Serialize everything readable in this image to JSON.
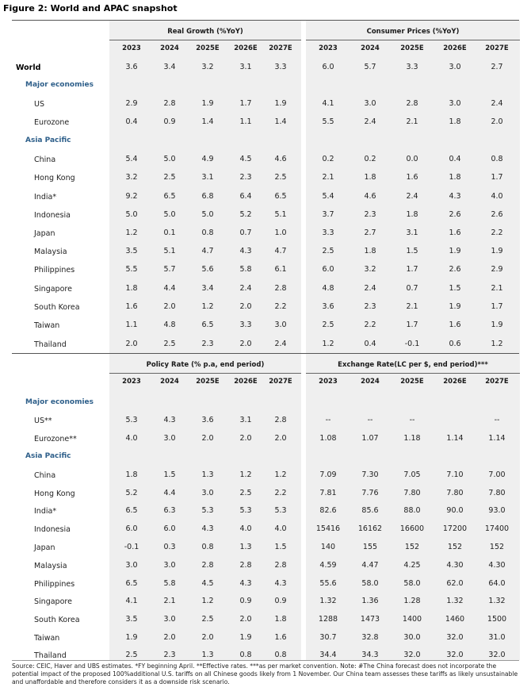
{
  "title": "Figure 2: World and APAC snapshot",
  "top": {
    "group_left": "Real Growth (%YoY)",
    "group_right": "Consumer Prices (%YoY)",
    "years": [
      "2023",
      "2024",
      "2025E",
      "2026E",
      "2027E"
    ],
    "rows": [
      {
        "type": "world",
        "label": "World",
        "a": [
          "3.6",
          "3.4",
          "3.2",
          "3.1",
          "3.3"
        ],
        "b": [
          "6.0",
          "5.7",
          "3.3",
          "3.0",
          "2.7"
        ]
      },
      {
        "type": "section",
        "label": "Major economies"
      },
      {
        "type": "row",
        "label": "US",
        "a": [
          "2.9",
          "2.8",
          "1.9",
          "1.7",
          "1.9"
        ],
        "b": [
          "4.1",
          "3.0",
          "2.8",
          "3.0",
          "2.4"
        ]
      },
      {
        "type": "row",
        "label": "Eurozone",
        "a": [
          "0.4",
          "0.9",
          "1.4",
          "1.1",
          "1.4"
        ],
        "b": [
          "5.5",
          "2.4",
          "2.1",
          "1.8",
          "2.0"
        ]
      },
      {
        "type": "section",
        "label": "Asia Pacific"
      },
      {
        "type": "row",
        "label": "China",
        "a": [
          "5.4",
          "5.0",
          "4.9",
          "4.5",
          "4.6"
        ],
        "b": [
          "0.2",
          "0.2",
          "0.0",
          "0.4",
          "0.8"
        ]
      },
      {
        "type": "row",
        "label": "Hong Kong",
        "a": [
          "3.2",
          "2.5",
          "3.1",
          "2.3",
          "2.5"
        ],
        "b": [
          "2.1",
          "1.8",
          "1.6",
          "1.8",
          "1.7"
        ]
      },
      {
        "type": "row",
        "label": "India*",
        "a": [
          "9.2",
          "6.5",
          "6.8",
          "6.4",
          "6.5"
        ],
        "b": [
          "5.4",
          "4.6",
          "2.4",
          "4.3",
          "4.0"
        ]
      },
      {
        "type": "row",
        "label": "Indonesia",
        "a": [
          "5.0",
          "5.0",
          "5.0",
          "5.2",
          "5.1"
        ],
        "b": [
          "3.7",
          "2.3",
          "1.8",
          "2.6",
          "2.6"
        ]
      },
      {
        "type": "row",
        "label": "Japan",
        "a": [
          "1.2",
          "0.1",
          "0.8",
          "0.7",
          "1.0"
        ],
        "b": [
          "3.3",
          "2.7",
          "3.1",
          "1.6",
          "2.2"
        ]
      },
      {
        "type": "row",
        "label": "Malaysia",
        "a": [
          "3.5",
          "5.1",
          "4.7",
          "4.3",
          "4.7"
        ],
        "b": [
          "2.5",
          "1.8",
          "1.5",
          "1.9",
          "1.9"
        ]
      },
      {
        "type": "row",
        "label": "Philippines",
        "a": [
          "5.5",
          "5.7",
          "5.6",
          "5.8",
          "6.1"
        ],
        "b": [
          "6.0",
          "3.2",
          "1.7",
          "2.6",
          "2.9"
        ]
      },
      {
        "type": "row",
        "label": "Singapore",
        "a": [
          "1.8",
          "4.4",
          "3.4",
          "2.4",
          "2.8"
        ],
        "b": [
          "4.8",
          "2.4",
          "0.7",
          "1.5",
          "2.1"
        ]
      },
      {
        "type": "row",
        "label": "South Korea",
        "a": [
          "1.6",
          "2.0",
          "1.2",
          "2.0",
          "2.2"
        ],
        "b": [
          "3.6",
          "2.3",
          "2.1",
          "1.9",
          "1.7"
        ]
      },
      {
        "type": "row",
        "label": "Taiwan",
        "a": [
          "1.1",
          "4.8",
          "6.5",
          "3.3",
          "3.0"
        ],
        "b": [
          "2.5",
          "2.2",
          "1.7",
          "1.6",
          "1.9"
        ]
      },
      {
        "type": "row",
        "label": "Thailand",
        "a": [
          "2.0",
          "2.5",
          "2.3",
          "2.0",
          "2.4"
        ],
        "b": [
          "1.2",
          "0.4",
          "-0.1",
          "0.6",
          "1.2"
        ]
      }
    ]
  },
  "bottom": {
    "group_left": "Policy Rate (% p.a, end period)",
    "group_right": "Exchange Rate(LC per $, end period)***",
    "years": [
      "2023",
      "2024",
      "2025E",
      "2026E",
      "2027E"
    ],
    "rows": [
      {
        "type": "section",
        "label": "Major economies"
      },
      {
        "type": "row",
        "label": "US**",
        "a": [
          "5.3",
          "4.3",
          "3.6",
          "3.1",
          "2.8"
        ],
        "b": [
          "--",
          "--",
          "--",
          "",
          "--"
        ]
      },
      {
        "type": "row",
        "label": "Eurozone**",
        "a": [
          "4.0",
          "3.0",
          "2.0",
          "2.0",
          "2.0"
        ],
        "b": [
          "1.08",
          "1.07",
          "1.18",
          "1.14",
          "1.14"
        ]
      },
      {
        "type": "section",
        "label": "Asia Pacific"
      },
      {
        "type": "row",
        "label": "China",
        "a": [
          "1.8",
          "1.5",
          "1.3",
          "1.2",
          "1.2"
        ],
        "b": [
          "7.09",
          "7.30",
          "7.05",
          "7.10",
          "7.00"
        ]
      },
      {
        "type": "row",
        "label": "Hong Kong",
        "a": [
          "5.2",
          "4.4",
          "3.0",
          "2.5",
          "2.2"
        ],
        "b": [
          "7.81",
          "7.76",
          "7.80",
          "7.80",
          "7.80"
        ]
      },
      {
        "type": "row",
        "label": "India*",
        "a": [
          "6.5",
          "6.3",
          "5.3",
          "5.3",
          "5.3"
        ],
        "b": [
          "82.6",
          "85.6",
          "88.0",
          "90.0",
          "93.0"
        ]
      },
      {
        "type": "row",
        "label": "Indonesia",
        "a": [
          "6.0",
          "6.0",
          "4.3",
          "4.0",
          "4.0"
        ],
        "b": [
          "15416",
          "16162",
          "16600",
          "17200",
          "17400"
        ]
      },
      {
        "type": "row",
        "label": "Japan",
        "a": [
          "-0.1",
          "0.3",
          "0.8",
          "1.3",
          "1.5"
        ],
        "b": [
          "140",
          "155",
          "152",
          "152",
          "152"
        ]
      },
      {
        "type": "row",
        "label": "Malaysia",
        "a": [
          "3.0",
          "3.0",
          "2.8",
          "2.8",
          "2.8"
        ],
        "b": [
          "4.59",
          "4.47",
          "4.25",
          "4.30",
          "4.30"
        ]
      },
      {
        "type": "row",
        "label": "Philippines",
        "a": [
          "6.5",
          "5.8",
          "4.5",
          "4.3",
          "4.3"
        ],
        "b": [
          "55.6",
          "58.0",
          "58.0",
          "62.0",
          "64.0"
        ]
      },
      {
        "type": "row",
        "label": "Singapore",
        "a": [
          "4.1",
          "2.1",
          "1.2",
          "0.9",
          "0.9"
        ],
        "b": [
          "1.32",
          "1.36",
          "1.28",
          "1.32",
          "1.32"
        ]
      },
      {
        "type": "row",
        "label": "South Korea",
        "a": [
          "3.5",
          "3.0",
          "2.5",
          "2.0",
          "1.8"
        ],
        "b": [
          "1288",
          "1473",
          "1400",
          "1460",
          "1500"
        ]
      },
      {
        "type": "row",
        "label": "Taiwan",
        "a": [
          "1.9",
          "2.0",
          "2.0",
          "1.9",
          "1.6"
        ],
        "b": [
          "30.7",
          "32.8",
          "30.0",
          "32.0",
          "31.0"
        ]
      },
      {
        "type": "row",
        "label": "Thailand",
        "a": [
          "2.5",
          "2.3",
          "1.3",
          "0.8",
          "0.8"
        ],
        "b": [
          "34.4",
          "34.3",
          "32.0",
          "32.0",
          "32.0"
        ]
      }
    ]
  },
  "footnote": "Source: CEIC, Haver and UBS estimates. *FY beginning April. **Effective rates. ***as per market convention. Note: #The China forecast does not incorporate the potential impact of the proposed 100%additional U.S. tariffs on all Chinese goods likely from 1 November. Our China team assesses these tariffs as likely unsustainable and unaffordable and therefore considers it as a downside risk scenario."
}
